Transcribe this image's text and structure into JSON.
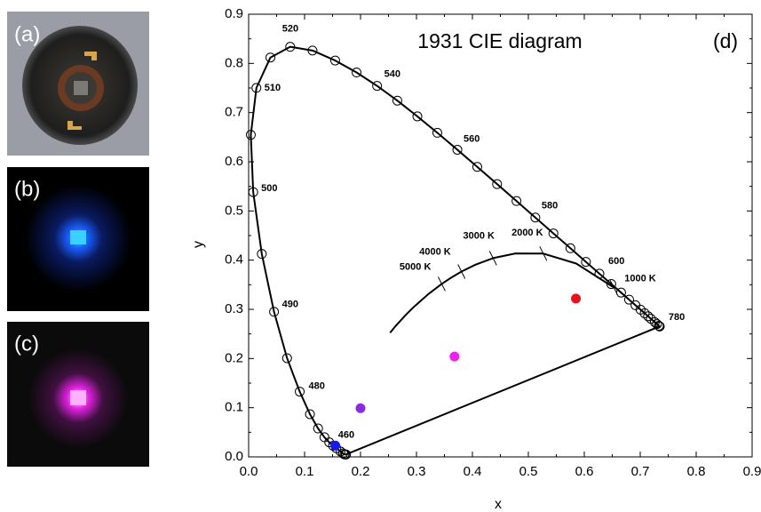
{
  "panels": [
    {
      "label": "(a)"
    },
    {
      "label": "(b)"
    },
    {
      "label": "(c)"
    }
  ],
  "chart_data": {
    "type": "scatter",
    "title": "1931 CIE diagram",
    "panel_label": "(d)",
    "x_label": "x",
    "y_label": "y",
    "xlim": [
      0,
      0.9
    ],
    "ylim": [
      0,
      0.9
    ],
    "xticks": [
      {
        "value": 0,
        "label": "0.0"
      },
      0.1,
      0.2,
      0.3,
      0.4,
      0.5,
      0.6,
      0.7,
      0.8,
      0.9
    ],
    "yticks": [
      {
        "value": 0,
        "label": "0.0"
      },
      0.1,
      0.2,
      0.3,
      0.4,
      0.5,
      0.6,
      0.7,
      0.8,
      0.9
    ],
    "series": [
      {
        "color": "#000000",
        "marker": "open-circle",
        "line": true,
        "closed": true,
        "x": [
          0.1741,
          0.1733,
          0.1714,
          0.1689,
          0.1644,
          0.1566,
          0.151,
          0.144,
          0.1355,
          0.1241,
          0.1096,
          0.0913,
          0.0687,
          0.0454,
          0.0235,
          0.0082,
          0.0039,
          0.0139,
          0.0389,
          0.0743,
          0.1142,
          0.1547,
          0.1929,
          0.2296,
          0.2658,
          0.3016,
          0.3373,
          0.3731,
          0.4087,
          0.4441,
          0.4788,
          0.5125,
          0.5448,
          0.5752,
          0.6029,
          0.627,
          0.6482,
          0.6658,
          0.6801,
          0.6915,
          0.7006,
          0.7079,
          0.714,
          0.719,
          0.726,
          0.73,
          0.7334,
          0.7347,
          0.7347
        ],
        "values": [
          0.005,
          0.0048,
          0.0051,
          0.0069,
          0.0109,
          0.0177,
          0.0227,
          0.0297,
          0.0399,
          0.0578,
          0.0868,
          0.1327,
          0.2007,
          0.295,
          0.4127,
          0.5384,
          0.6548,
          0.7502,
          0.812,
          0.8338,
          0.8262,
          0.8059,
          0.7816,
          0.7543,
          0.7243,
          0.6923,
          0.6589,
          0.6245,
          0.5896,
          0.5547,
          0.5202,
          0.4866,
          0.4544,
          0.4242,
          0.3965,
          0.3725,
          0.3514,
          0.334,
          0.3197,
          0.3083,
          0.2993,
          0.292,
          0.2859,
          0.2809,
          0.274,
          0.27,
          0.2666,
          0.2653,
          0.2653
        ]
      },
      {
        "color": "#000000",
        "marker": "none",
        "line": true,
        "closed": false,
        "x": [
          0.6528,
          0.5857,
          0.5267,
          0.477,
          0.4369,
          0.4053,
          0.3805,
          0.3608,
          0.3451,
          0.3221,
          0.2952,
          0.2807,
          0.2637,
          0.2528
        ],
        "values": [
          0.3444,
          0.3931,
          0.4133,
          0.4137,
          0.4041,
          0.3907,
          0.3768,
          0.3635,
          0.3516,
          0.3318,
          0.3048,
          0.2884,
          0.2674,
          0.2524
        ]
      },
      {
        "color": "#1a1ae6",
        "marker": "dot",
        "line": false,
        "closed": false,
        "x": [
          0.155
        ],
        "values": [
          0.023
        ]
      },
      {
        "color": "#8a2be2",
        "marker": "dot",
        "line": false,
        "closed": false,
        "x": [
          0.2
        ],
        "values": [
          0.099
        ]
      },
      {
        "color": "#f020f0",
        "marker": "dot",
        "line": false,
        "closed": false,
        "x": [
          0.368
        ],
        "values": [
          0.204
        ]
      },
      {
        "color": "#e8141c",
        "marker": "dot",
        "line": false,
        "closed": false,
        "x": [
          0.585
        ],
        "values": [
          0.322
        ]
      }
    ],
    "wavelength_labels": [
      {
        "label": "460",
        "x": 0.144,
        "y": 0.0297
      },
      {
        "label": "480",
        "x": 0.0913,
        "y": 0.1327
      },
      {
        "label": "490",
        "x": 0.0454,
        "y": 0.295
      },
      {
        "label": "500",
        "x": 0.0082,
        "y": 0.5384
      },
      {
        "label": "510",
        "x": 0.0139,
        "y": 0.7502
      },
      {
        "label": "520",
        "x": 0.0743,
        "y": 0.8338
      },
      {
        "label": "540",
        "x": 0.2296,
        "y": 0.7543
      },
      {
        "label": "560",
        "x": 0.3731,
        "y": 0.6245
      },
      {
        "label": "580",
        "x": 0.5125,
        "y": 0.4866
      },
      {
        "label": "600",
        "x": 0.627,
        "y": 0.3725
      },
      {
        "label": "780",
        "x": 0.7347,
        "y": 0.2653
      }
    ],
    "cct_ticks": [
      {
        "label": "1000 K",
        "x": 0.6528,
        "y": 0.3444
      },
      {
        "label": "2000 K",
        "x": 0.5267,
        "y": 0.4133
      },
      {
        "label": "3000 K",
        "x": 0.4369,
        "y": 0.4041
      },
      {
        "label": "4000 K",
        "x": 0.3805,
        "y": 0.3768
      },
      {
        "label": "5000 K",
        "x": 0.3451,
        "y": 0.3516
      }
    ]
  }
}
